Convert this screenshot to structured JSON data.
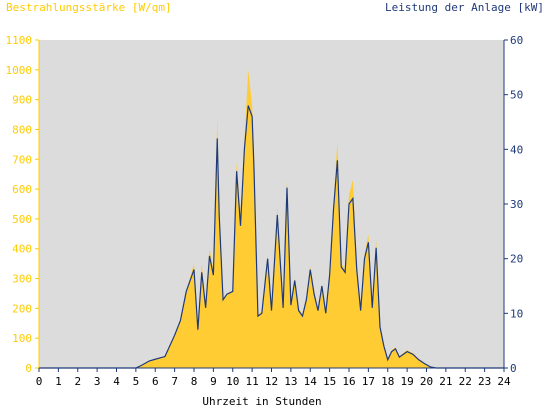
{
  "chart_data": {
    "type": "area",
    "title_left": "Bestrahlungsstärke [W/qm]",
    "title_right": "Leistung der Anlage [kW]",
    "xlabel": "Uhrzeit in Stunden",
    "xlim": [
      0,
      24
    ],
    "ylim_left": [
      0,
      1100
    ],
    "ylim_right": [
      0,
      60
    ],
    "x_ticks": [
      "0",
      "1",
      "2",
      "3",
      "4",
      "5",
      "6",
      "7",
      "8",
      "9",
      "10",
      "11",
      "12",
      "13",
      "14",
      "15",
      "16",
      "17",
      "18",
      "19",
      "20",
      "21",
      "22",
      "23",
      "24"
    ],
    "left_ticks": [
      "0",
      "100",
      "200",
      "300",
      "400",
      "500",
      "600",
      "700",
      "800",
      "900",
      "1000",
      "1100"
    ],
    "right_ticks": [
      "0",
      "10",
      "20",
      "30",
      "40",
      "50",
      "60"
    ],
    "grid": false,
    "colors": {
      "irradiance": "#ffcc33",
      "power": "#1f3a7a",
      "plot_bg": "#dcdcdc",
      "left_axis_text": "#ffcc00",
      "right_axis_text": "#1f3a7a"
    },
    "series": [
      {
        "name": "Bestrahlungsstärke",
        "axis": "left",
        "style": "area",
        "x": [
          0,
          5,
          5.3,
          5.7,
          6.0,
          6.5,
          7.0,
          7.3,
          7.6,
          8.0,
          8.2,
          8.4,
          8.6,
          8.8,
          9.0,
          9.2,
          9.3,
          9.5,
          9.7,
          10.0,
          10.2,
          10.4,
          10.6,
          10.8,
          11.0,
          11.1,
          11.3,
          11.5,
          11.8,
          12.0,
          12.3,
          12.6,
          12.8,
          13.0,
          13.2,
          13.4,
          13.6,
          13.8,
          14.0,
          14.2,
          14.4,
          14.6,
          14.8,
          15.0,
          15.2,
          15.4,
          15.6,
          15.8,
          16.0,
          16.2,
          16.4,
          16.6,
          16.8,
          17.0,
          17.2,
          17.4,
          17.6,
          17.8,
          18.0,
          18.2,
          18.4,
          18.6,
          18.8,
          19.0,
          19.3,
          19.6,
          19.9,
          20.2,
          20.5,
          20.8,
          21.0,
          24
        ],
        "y": [
          0,
          0,
          10,
          25,
          30,
          40,
          110,
          160,
          260,
          350,
          130,
          350,
          220,
          400,
          330,
          840,
          560,
          230,
          250,
          260,
          690,
          520,
          760,
          1000,
          880,
          720,
          180,
          190,
          380,
          200,
          540,
          210,
          630,
          220,
          300,
          200,
          180,
          240,
          340,
          260,
          200,
          280,
          190,
          320,
          550,
          760,
          350,
          330,
          580,
          630,
          350,
          200,
          380,
          450,
          210,
          430,
          140,
          80,
          30,
          60,
          70,
          40,
          50,
          60,
          50,
          30,
          15,
          5,
          0,
          0,
          0,
          0
        ]
      },
      {
        "name": "Leistung der Anlage",
        "axis": "right",
        "style": "line",
        "x": [
          0,
          5,
          5.3,
          5.7,
          6.0,
          6.5,
          7.0,
          7.3,
          7.6,
          8.0,
          8.2,
          8.4,
          8.6,
          8.8,
          9.0,
          9.2,
          9.3,
          9.5,
          9.7,
          10.0,
          10.2,
          10.4,
          10.6,
          10.8,
          11.0,
          11.1,
          11.3,
          11.5,
          11.8,
          12.0,
          12.3,
          12.6,
          12.8,
          13.0,
          13.2,
          13.4,
          13.6,
          13.8,
          14.0,
          14.2,
          14.4,
          14.6,
          14.8,
          15.0,
          15.2,
          15.4,
          15.6,
          15.8,
          16.0,
          16.2,
          16.4,
          16.6,
          16.8,
          17.0,
          17.2,
          17.4,
          17.6,
          17.8,
          18.0,
          18.2,
          18.4,
          18.6,
          18.8,
          19.0,
          19.3,
          19.6,
          19.9,
          20.2,
          20.5,
          20.8,
          21.0,
          24
        ],
        "y": [
          0,
          0,
          0.5,
          1.3,
          1.6,
          2.1,
          6.0,
          8.7,
          14.0,
          18.0,
          7.0,
          17.5,
          11.0,
          20.5,
          17.0,
          42.0,
          28.0,
          12.5,
          13.5,
          14.0,
          36.0,
          26.0,
          40.0,
          48.0,
          46.0,
          36.0,
          9.5,
          10.0,
          20.0,
          10.5,
          28.0,
          11.0,
          33.0,
          11.5,
          16.0,
          10.5,
          9.5,
          12.5,
          18.0,
          13.5,
          10.5,
          15.0,
          10.0,
          17.0,
          29.0,
          38.0,
          18.5,
          17.5,
          30.0,
          31.0,
          18.0,
          10.5,
          20.0,
          23.0,
          11.0,
          22.0,
          7.5,
          4.0,
          1.5,
          3.0,
          3.5,
          2.0,
          2.5,
          3.0,
          2.5,
          1.5,
          0.8,
          0.2,
          0,
          0,
          0,
          0
        ]
      }
    ]
  }
}
